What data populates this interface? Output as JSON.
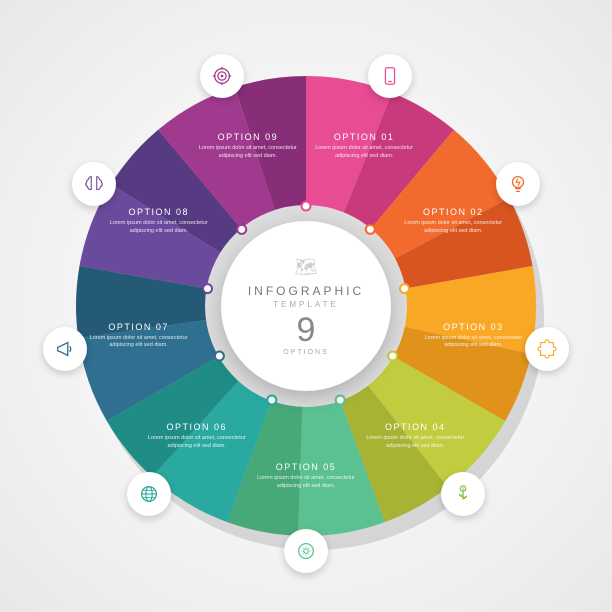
{
  "infographic": {
    "type": "pie",
    "slice_count": 9,
    "outer_radius": 230,
    "inner_radius": 100,
    "label_radius": 170,
    "icon_radius": 245,
    "dot_radius": 100,
    "start_angle_deg": -90,
    "background_color": "#f2f2f2",
    "center": {
      "title": "INFOGRAPHIC",
      "subtitle": "TEMPLATE",
      "number": "9",
      "unit": "OPTIONS",
      "map_glyph": "🗺",
      "bg_color": "#ffffff",
      "title_color": "#777777",
      "number_color": "#888888"
    },
    "lorem": "Lorem ipsum dolor sit amet, consectetur adipiscing elit sed diam.",
    "slices": [
      {
        "label": "OPTION 01",
        "color_main": "#e84c93",
        "color_shade": "#c93a7d",
        "icon": "phone",
        "icon_color": "#e84c93"
      },
      {
        "label": "OPTION 02",
        "color_main": "#f26a2e",
        "color_shade": "#d9551f",
        "icon": "bulb",
        "icon_color": "#f26a2e"
      },
      {
        "label": "OPTION 03",
        "color_main": "#f9a825",
        "color_shade": "#e0921b",
        "icon": "puzzle",
        "icon_color": "#f9a825"
      },
      {
        "label": "OPTION 04",
        "color_main": "#c2cc3f",
        "color_shade": "#a8b233",
        "icon": "plant",
        "icon_color": "#8bc34a"
      },
      {
        "label": "OPTION 05",
        "color_main": "#5bc190",
        "color_shade": "#47a878",
        "icon": "gearhead",
        "icon_color": "#5bc190"
      },
      {
        "label": "OPTION 06",
        "color_main": "#2aa9a0",
        "color_shade": "#1f8d85",
        "icon": "globe",
        "icon_color": "#2aa9a0"
      },
      {
        "label": "OPTION 07",
        "color_main": "#2f6f8f",
        "color_shade": "#245a75",
        "icon": "megaphone",
        "icon_color": "#2f6f8f"
      },
      {
        "label": "OPTION 08",
        "color_main": "#6a4a9c",
        "color_shade": "#563a82",
        "icon": "brain",
        "icon_color": "#6a4a9c"
      },
      {
        "label": "OPTION 09",
        "color_main": "#a03a8f",
        "color_shade": "#882e78",
        "icon": "target",
        "icon_color": "#a03a8f"
      }
    ]
  }
}
